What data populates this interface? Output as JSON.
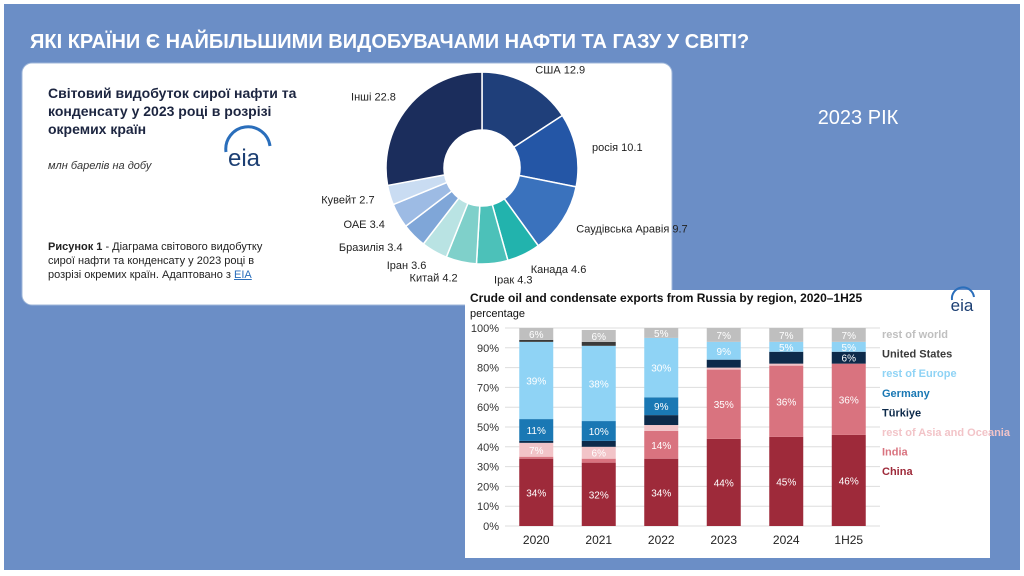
{
  "slide": {
    "title": "ЯКІ КРАЇНИ Є НАЙБІЛЬШИМИ ВИДОБУВАЧАМИ НАФТИ ТА ГАЗУ У СВІТІ?",
    "year": "2023 РІК"
  },
  "chart_data": [
    {
      "type": "pie",
      "title": "Світовий видобуток сирої нафти та конденсату у 2023 році в розрізі окремих країн",
      "subtitle": "млн барелів на добу",
      "logo": "eia",
      "caption_label": "Рисунок 1",
      "caption": " - Діаграма світового видобутку сирої нафти та конденсату у 2023 році в розрізі окремих країн. Адаптовано з ",
      "source_link": "EIA",
      "categories": [
        "США",
        "росія",
        "Саудівська Аравія",
        "Канада",
        "Ірак",
        "Китай",
        "Іран",
        "Бразилія",
        "ОАЕ",
        "Кувейт",
        "Інші"
      ],
      "values": [
        12.9,
        10.1,
        9.7,
        4.6,
        4.3,
        4.2,
        3.6,
        3.4,
        3.4,
        2.7,
        22.8
      ],
      "colors": [
        "#1f3f7a",
        "#2456a6",
        "#3a72bd",
        "#22b3ad",
        "#4cc1b9",
        "#7fd0ca",
        "#b9e3e3",
        "#7fa6d8",
        "#9dbbe4",
        "#c9dcf2",
        "#1b2d5c"
      ]
    },
    {
      "type": "stacked_bar",
      "title": "Crude oil and condensate exports from Russia by region, 2020–1H25",
      "y_label": "percentage",
      "logo": "eia",
      "categories": [
        "2020",
        "2021",
        "2022",
        "2023",
        "2024",
        "1H25"
      ],
      "ylim": [
        0,
        100
      ],
      "yticks": [
        {
          "value": 0,
          "label": "0%"
        },
        {
          "value": 10,
          "label": "10%"
        },
        {
          "value": 20,
          "label": "20%"
        },
        {
          "value": 30,
          "label": "30%"
        },
        {
          "value": 40,
          "label": "40%"
        },
        {
          "value": 50,
          "label": "50%"
        },
        {
          "value": 60,
          "label": "60%"
        },
        {
          "value": 70,
          "label": "70%"
        },
        {
          "value": 80,
          "label": "80%"
        },
        {
          "value": 90,
          "label": "90%"
        },
        {
          "value": 100,
          "label": "100%"
        }
      ],
      "grid": true,
      "series": [
        {
          "name": "China",
          "color": "#9e2a3a",
          "values": [
            34,
            32,
            34,
            44,
            45,
            46
          ],
          "value_labels": [
            "34%",
            "32%",
            "34%",
            "44%",
            "45%",
            "46%"
          ]
        },
        {
          "name": "India",
          "color": "#d9737f",
          "values": [
            1,
            2,
            14,
            35,
            36,
            36
          ],
          "value_labels": [
            null,
            null,
            "14%",
            "35%",
            "36%",
            "36%"
          ]
        },
        {
          "name": "rest of Asia and Oceania",
          "color": "#f2c4c8",
          "values": [
            7,
            6,
            3,
            1,
            1,
            0
          ],
          "value_labels": [
            "7%",
            "6%",
            null,
            null,
            null,
            null
          ]
        },
        {
          "name": "Türkiye",
          "color": "#0d2a4a",
          "values": [
            1,
            3,
            5,
            4,
            6,
            6
          ],
          "value_labels": [
            null,
            null,
            null,
            null,
            null,
            "6%"
          ]
        },
        {
          "name": "Germany",
          "color": "#1a78b4",
          "values": [
            11,
            10,
            9,
            0,
            0,
            0
          ],
          "value_labels": [
            "11%",
            "10%",
            "9%",
            null,
            null,
            null
          ]
        },
        {
          "name": "rest of Europe",
          "color": "#8fd3f5",
          "values": [
            39,
            38,
            30,
            9,
            5,
            5
          ],
          "value_labels": [
            "39%",
            "38%",
            "30%",
            "9%",
            "5%",
            "5%"
          ]
        },
        {
          "name": "United States",
          "color": "#3a3a3a",
          "values": [
            1,
            2,
            0,
            0,
            0,
            0
          ],
          "value_labels": [
            null,
            null,
            null,
            null,
            null,
            null
          ]
        },
        {
          "name": "rest of world",
          "color": "#bfbfbf",
          "values": [
            6,
            6,
            5,
            7,
            7,
            7
          ],
          "value_labels": [
            "6%",
            "6%",
            "5%",
            "7%",
            "7%",
            "7%"
          ]
        }
      ]
    }
  ]
}
